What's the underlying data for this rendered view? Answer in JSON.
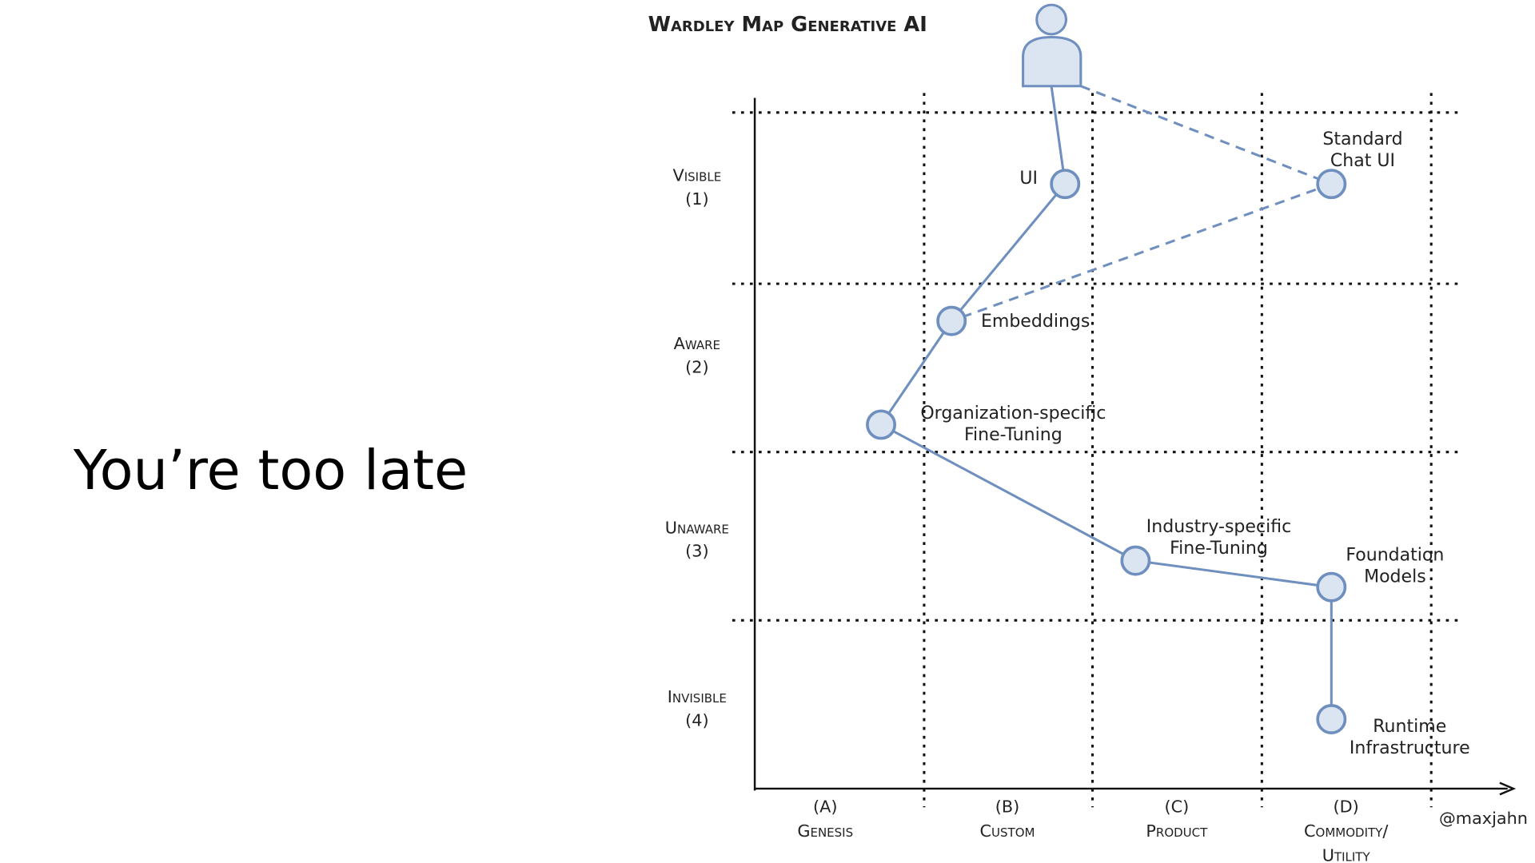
{
  "slide": {
    "title": "You’re too late"
  },
  "map": {
    "title": "Wardley Map Generative AI",
    "rows": [
      [
        "Visible",
        "(1)"
      ],
      [
        "Aware",
        "(2)"
      ],
      [
        "Unaware",
        "(3)"
      ],
      [
        "Invisible",
        "(4)"
      ]
    ],
    "columns": [
      [
        "(A)",
        "Genesis"
      ],
      [
        "(B)",
        "Custom"
      ],
      [
        "(C)",
        "Product"
      ],
      [
        "(D)",
        "Commodity/",
        "Utility"
      ]
    ],
    "nodes": [
      {
        "label": [
          "UI"
        ]
      },
      {
        "label": [
          "Standard",
          "Chat UI"
        ]
      },
      {
        "label": [
          "Embeddings"
        ]
      },
      {
        "label": [
          "Organization-specific",
          "Fine-Tuning"
        ]
      },
      {
        "label": [
          "Industry-specific",
          "Fine-Tuning"
        ]
      },
      {
        "label": [
          "Foundation",
          "Models"
        ]
      },
      {
        "label": [
          "Runtime",
          "Infrastructure"
        ]
      }
    ],
    "credit": "@maxjahn"
  }
}
